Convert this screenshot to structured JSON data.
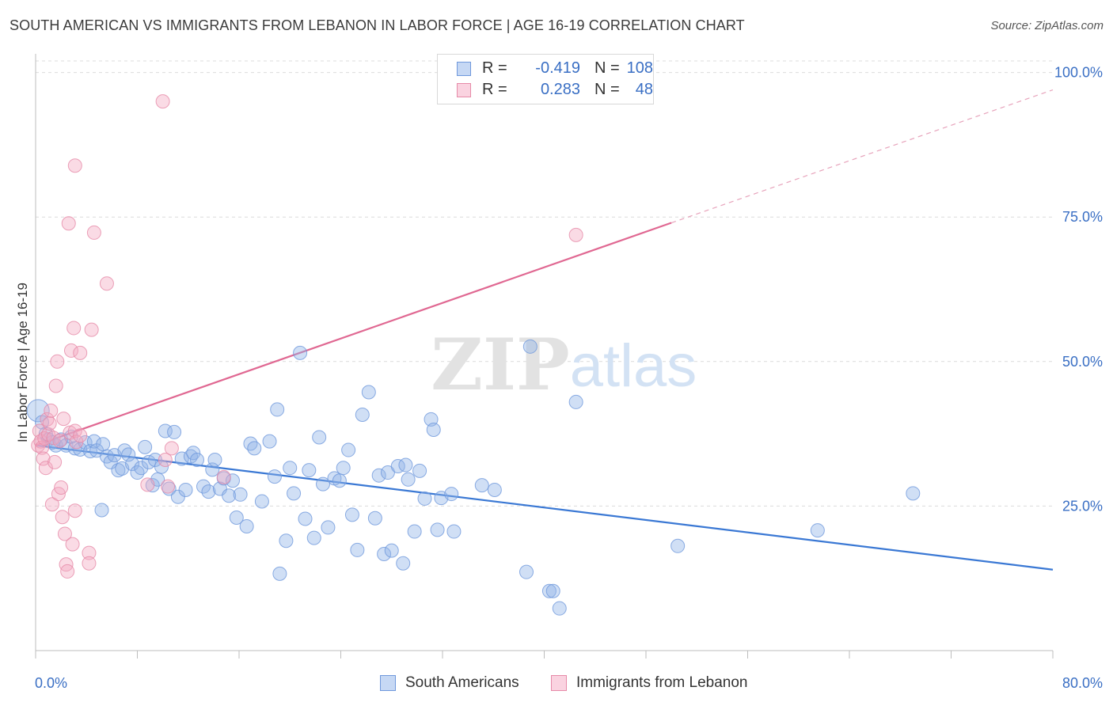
{
  "title": "SOUTH AMERICAN VS IMMIGRANTS FROM LEBANON IN LABOR FORCE | AGE 16-19 CORRELATION CHART",
  "source": "Source: ZipAtlas.com",
  "watermark": {
    "zip": "ZIP",
    "atlas": "atlas"
  },
  "legend_top": [
    {
      "r_label": "R =",
      "r_value": "-0.419",
      "n_label": "N =",
      "n_value": "108",
      "color": "#a9c4ee",
      "border": "#6f98dc"
    },
    {
      "r_label": "R =",
      "r_value": "0.283",
      "n_label": "N =",
      "n_value": "48",
      "color": "#f6bfd1",
      "border": "#e68aa8"
    }
  ],
  "legend_bottom": [
    {
      "label": "South Americans",
      "color": "#a9c4ee",
      "border": "#6f98dc"
    },
    {
      "label": "Immigrants from Lebanon",
      "color": "#f6bfd1",
      "border": "#e68aa8"
    }
  ],
  "chart_data": {
    "type": "scatter",
    "title": "SOUTH AMERICAN VS IMMIGRANTS FROM LEBANON IN LABOR FORCE | AGE 16-19 CORRELATION CHART",
    "xlabel": "",
    "ylabel": "In Labor Force | Age 16-19",
    "xlim": [
      0,
      80
    ],
    "ylim": [
      0,
      102
    ],
    "x_tick_labels": [
      "0.0%",
      "80.0%"
    ],
    "y_ticks": [
      25,
      50,
      75,
      100
    ],
    "y_tick_labels": [
      "25.0%",
      "50.0%",
      "75.0%",
      "100.0%"
    ],
    "grid": true,
    "legend_position": "top-center",
    "colors": {
      "blue": "#3a78d4",
      "pink": "#e06892",
      "tick_label": "#3a6fc4"
    },
    "series": [
      {
        "name": "South Americans",
        "color": "#8fb3e8",
        "trend": {
          "x": [
            0,
            80
          ],
          "y": [
            35.5,
            14.0
          ],
          "style": "solid"
        },
        "points": [
          [
            0.2,
            41.5
          ],
          [
            0.5,
            39.5
          ],
          [
            0.8,
            37.5
          ],
          [
            1.0,
            36.5
          ],
          [
            1.3,
            36.0
          ],
          [
            1.6,
            35.5
          ],
          [
            2.0,
            36.5
          ],
          [
            2.4,
            35.5
          ],
          [
            2.8,
            37.0
          ],
          [
            3.1,
            35.0
          ],
          [
            3.5,
            34.8
          ],
          [
            3.9,
            36.0
          ],
          [
            4.3,
            34.5
          ],
          [
            4.6,
            36.2
          ],
          [
            4.8,
            34.6
          ],
          [
            5.2,
            24.3
          ],
          [
            5.3,
            35.7
          ],
          [
            5.6,
            33.6
          ],
          [
            5.9,
            32.6
          ],
          [
            6.2,
            33.8
          ],
          [
            6.5,
            31.2
          ],
          [
            6.8,
            31.5
          ],
          [
            7.0,
            34.6
          ],
          [
            7.3,
            33.9
          ],
          [
            7.6,
            32.3
          ],
          [
            8.0,
            30.8
          ],
          [
            8.3,
            31.6
          ],
          [
            8.6,
            35.2
          ],
          [
            8.9,
            32.6
          ],
          [
            9.2,
            28.6
          ],
          [
            9.4,
            33.0
          ],
          [
            9.6,
            29.6
          ],
          [
            9.9,
            31.8
          ],
          [
            10.2,
            38.0
          ],
          [
            10.5,
            28.0
          ],
          [
            10.9,
            37.8
          ],
          [
            11.2,
            26.6
          ],
          [
            11.5,
            33.2
          ],
          [
            11.8,
            27.8
          ],
          [
            12.2,
            33.6
          ],
          [
            12.4,
            34.2
          ],
          [
            12.7,
            33.0
          ],
          [
            13.2,
            28.4
          ],
          [
            13.6,
            27.5
          ],
          [
            13.9,
            31.3
          ],
          [
            14.1,
            33.0
          ],
          [
            14.5,
            28.0
          ],
          [
            14.8,
            29.8
          ],
          [
            15.2,
            26.8
          ],
          [
            15.5,
            29.4
          ],
          [
            15.8,
            23.0
          ],
          [
            16.1,
            27.0
          ],
          [
            16.6,
            21.5
          ],
          [
            16.9,
            35.8
          ],
          [
            17.2,
            35.0
          ],
          [
            17.8,
            25.8
          ],
          [
            18.4,
            36.2
          ],
          [
            18.8,
            30.1
          ],
          [
            19.0,
            41.7
          ],
          [
            19.2,
            13.3
          ],
          [
            19.7,
            19.0
          ],
          [
            20.0,
            31.6
          ],
          [
            20.3,
            27.2
          ],
          [
            20.8,
            51.5
          ],
          [
            21.2,
            22.8
          ],
          [
            21.5,
            31.2
          ],
          [
            21.9,
            19.5
          ],
          [
            22.3,
            36.9
          ],
          [
            22.6,
            28.8
          ],
          [
            23.0,
            21.3
          ],
          [
            23.5,
            29.8
          ],
          [
            23.9,
            29.4
          ],
          [
            24.2,
            31.6
          ],
          [
            24.6,
            34.7
          ],
          [
            24.9,
            23.5
          ],
          [
            25.3,
            17.4
          ],
          [
            25.7,
            40.8
          ],
          [
            26.2,
            44.7
          ],
          [
            26.7,
            22.9
          ],
          [
            27.0,
            30.3
          ],
          [
            27.4,
            16.7
          ],
          [
            27.7,
            30.8
          ],
          [
            28.0,
            17.3
          ],
          [
            28.5,
            31.9
          ],
          [
            28.9,
            15.1
          ],
          [
            29.1,
            32.1
          ],
          [
            29.3,
            29.6
          ],
          [
            29.8,
            20.6
          ],
          [
            30.2,
            31.1
          ],
          [
            30.6,
            26.3
          ],
          [
            31.1,
            40.0
          ],
          [
            31.3,
            38.2
          ],
          [
            31.6,
            20.9
          ],
          [
            31.9,
            26.4
          ],
          [
            32.7,
            27.1
          ],
          [
            32.9,
            20.6
          ],
          [
            35.1,
            28.6
          ],
          [
            36.1,
            27.8
          ],
          [
            38.6,
            13.6
          ],
          [
            38.9,
            52.6
          ],
          [
            40.4,
            10.3
          ],
          [
            40.7,
            10.3
          ],
          [
            41.2,
            7.3
          ],
          [
            42.5,
            43.0
          ],
          [
            50.5,
            18.1
          ],
          [
            61.5,
            20.8
          ],
          [
            69.0,
            27.2
          ]
        ]
      },
      {
        "name": "Immigrants from Lebanon",
        "color": "#f2a9c1",
        "trend": {
          "x": [
            0,
            50
          ],
          "y": [
            35.5,
            74.0
          ],
          "style": "solid",
          "dashed_extension": {
            "x": [
              50,
              80
            ],
            "y": [
              74.0,
              97.0
            ]
          }
        },
        "points": [
          [
            0.2,
            35.5
          ],
          [
            0.3,
            38.0
          ],
          [
            0.4,
            36.2
          ],
          [
            0.5,
            35.1
          ],
          [
            0.6,
            33.2
          ],
          [
            0.7,
            36.7
          ],
          [
            0.8,
            31.6
          ],
          [
            0.9,
            40.0
          ],
          [
            1.0,
            37.4
          ],
          [
            1.1,
            39.3
          ],
          [
            1.2,
            41.5
          ],
          [
            1.3,
            25.3
          ],
          [
            1.4,
            36.8
          ],
          [
            1.5,
            32.6
          ],
          [
            1.6,
            45.8
          ],
          [
            1.7,
            50.0
          ],
          [
            1.8,
            27.1
          ],
          [
            1.9,
            36.3
          ],
          [
            2.0,
            28.2
          ],
          [
            2.1,
            23.1
          ],
          [
            2.2,
            40.1
          ],
          [
            2.3,
            20.2
          ],
          [
            2.4,
            14.9
          ],
          [
            2.5,
            13.7
          ],
          [
            2.6,
            73.9
          ],
          [
            2.7,
            37.7
          ],
          [
            2.8,
            51.9
          ],
          [
            2.9,
            18.4
          ],
          [
            3.0,
            55.8
          ],
          [
            3.1,
            38.0
          ],
          [
            3.2,
            36.1
          ],
          [
            3.1,
            83.9
          ],
          [
            3.1,
            24.2
          ],
          [
            3.5,
            37.2
          ],
          [
            3.5,
            51.5
          ],
          [
            4.2,
            16.9
          ],
          [
            4.2,
            15.1
          ],
          [
            4.4,
            55.5
          ],
          [
            4.6,
            72.3
          ],
          [
            5.6,
            63.5
          ],
          [
            8.8,
            28.7
          ],
          [
            10.0,
            95.0
          ],
          [
            10.4,
            28.4
          ],
          [
            10.7,
            35.0
          ],
          [
            10.2,
            33.0
          ],
          [
            14.8,
            30.0
          ],
          [
            42.5,
            71.9
          ]
        ]
      }
    ]
  }
}
